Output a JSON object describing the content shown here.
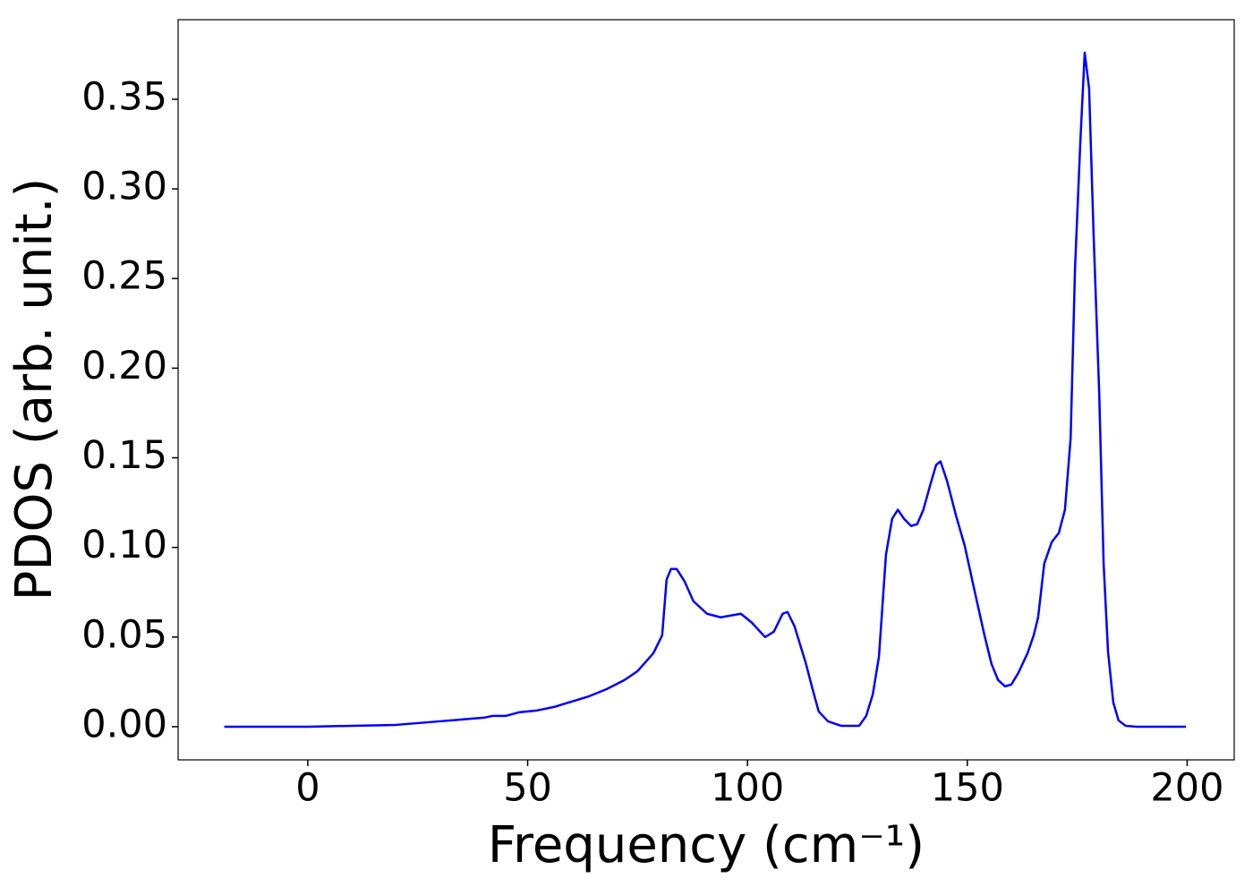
{
  "chart_data": {
    "type": "line",
    "x_label": "Frequency (cm⁻¹)",
    "y_label": "PDOS (arb. unit.)",
    "x": [
      -19,
      0,
      10,
      20,
      25,
      30,
      35,
      40,
      42,
      45,
      48,
      52,
      56,
      60,
      64,
      68,
      72,
      75,
      78.6,
      80.6,
      81.6,
      82.6,
      83.9,
      85.7,
      87.7,
      90.8,
      93.9,
      98.5,
      101,
      104,
      106,
      108,
      109.1,
      110.7,
      113.2,
      114.8,
      116.2,
      118.3,
      121.3,
      125.4,
      127,
      128.5,
      129.9,
      131.5,
      132.9,
      134.2,
      135.6,
      137.2,
      138.6,
      140,
      141.7,
      142.9,
      143.9,
      145.4,
      147.4,
      149.4,
      151.9,
      153.9,
      155.5,
      157,
      158.6,
      160,
      161.6,
      163.7,
      165.1,
      166.1,
      167.5,
      169.2,
      170.8,
      172.2,
      173.5,
      174.5,
      175.7,
      176.7,
      177.7,
      178.7,
      180,
      181,
      182,
      183.2,
      184.4,
      186,
      188.5,
      199.7
    ],
    "series": [
      {
        "color": "#0000ff",
        "values": [
          0,
          0,
          0.0005,
          0.001,
          0.002,
          0.003,
          0.004,
          0.005,
          0.006,
          0.006,
          0.008,
          0.009,
          0.011,
          0.014,
          0.017,
          0.021,
          0.026,
          0.031,
          0.041,
          0.051,
          0.082,
          0.088,
          0.088,
          0.081,
          0.07,
          0.063,
          0.061,
          0.063,
          0.058,
          0.05,
          0.053,
          0.063,
          0.064,
          0.056,
          0.036,
          0.021,
          0.0085,
          0.003,
          0.0005,
          0.0005,
          0.006,
          0.018,
          0.039,
          0.096,
          0.116,
          0.121,
          0.116,
          0.112,
          0.113,
          0.121,
          0.136,
          0.146,
          0.148,
          0.137,
          0.118,
          0.101,
          0.073,
          0.051,
          0.035,
          0.026,
          0.0225,
          0.0235,
          0.03,
          0.041,
          0.051,
          0.061,
          0.091,
          0.103,
          0.108,
          0.121,
          0.161,
          0.256,
          0.326,
          0.376,
          0.356,
          0.276,
          0.186,
          0.091,
          0.042,
          0.0135,
          0.0035,
          0.0005,
          0,
          0
        ]
      }
    ],
    "xlim": [
      -29.5,
      210.7
    ],
    "ylim": [
      -0.0185,
      0.3944
    ],
    "xticks": [
      0,
      50,
      100,
      150,
      200
    ],
    "yticks": [
      {
        "value": 0,
        "label": "0.00"
      },
      0.05,
      {
        "value": 0.1,
        "label": "0.10"
      },
      0.15,
      {
        "value": 0.2,
        "label": "0.20"
      },
      0.25,
      {
        "value": 0.3,
        "label": "0.30"
      },
      0.35
    ],
    "grid": false
  }
}
